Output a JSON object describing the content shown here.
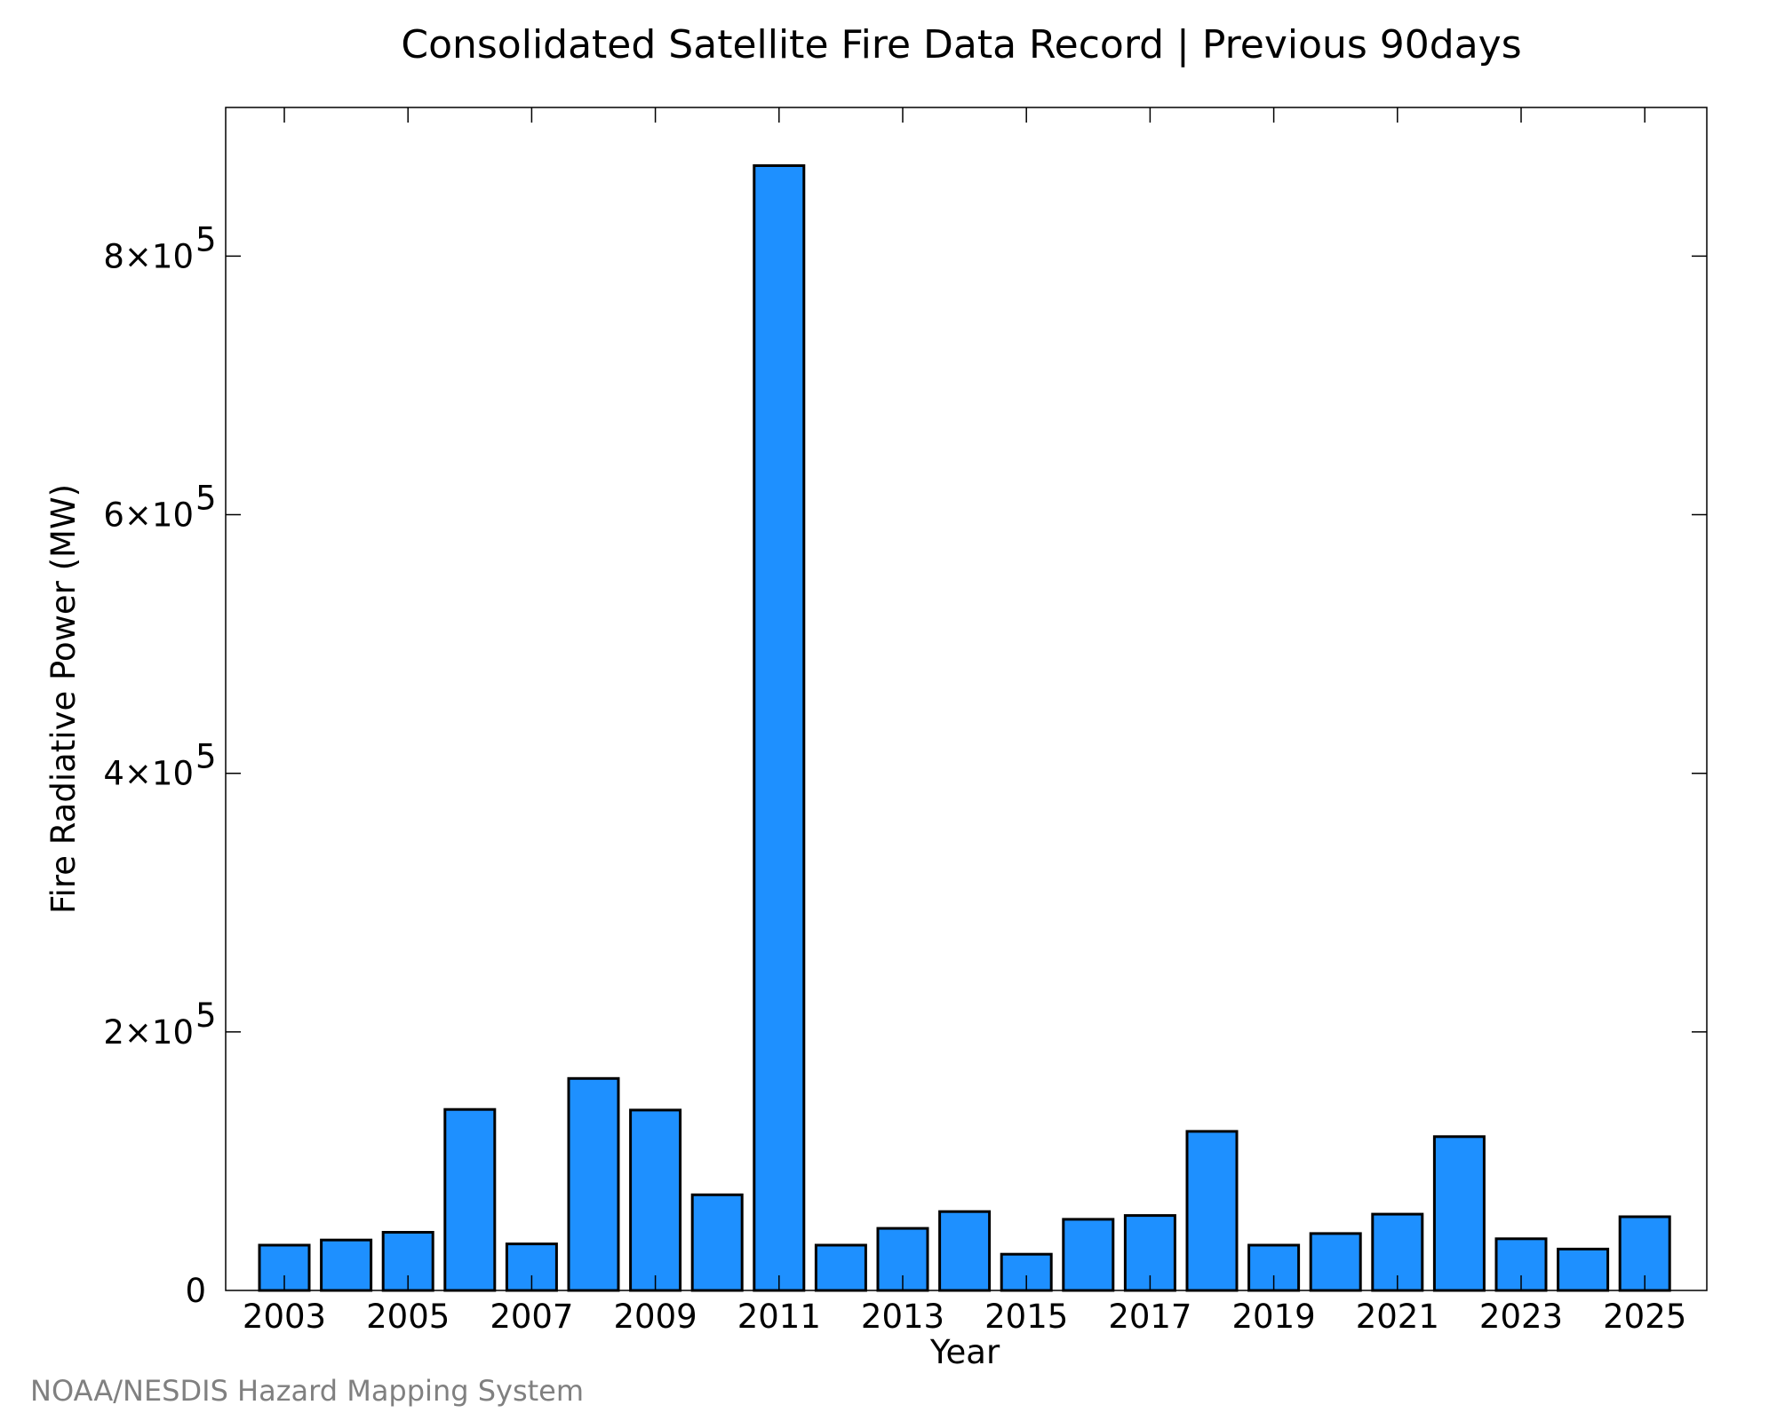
{
  "chart_data": {
    "type": "bar",
    "title": "Consolidated Satellite Fire Data Record | Previous 90days",
    "xlabel": "Year",
    "ylabel": "Fire Radiative Power (MW)",
    "ylim": [
      0,
      915000
    ],
    "grid": false,
    "bar_color": "#1E90FF",
    "categories": [
      "2003",
      "2004",
      "2005",
      "2006",
      "2007",
      "2008",
      "2009",
      "2010",
      "2011",
      "2012",
      "2013",
      "2014",
      "2015",
      "2016",
      "2017",
      "2018",
      "2019",
      "2020",
      "2021",
      "2022",
      "2023",
      "2024",
      "2025"
    ],
    "values": [
      35000,
      39000,
      45000,
      140000,
      36000,
      164000,
      139500,
      74000,
      870000,
      35000,
      48000,
      61000,
      28000,
      55000,
      58000,
      123000,
      35000,
      44000,
      59000,
      119000,
      40000,
      32000,
      57000
    ],
    "x_tick_labels": [
      "2003",
      "2005",
      "2007",
      "2009",
      "2011",
      "2013",
      "2015",
      "2017",
      "2019",
      "2021",
      "2023",
      "2025"
    ],
    "y_ticks": [
      {
        "value": 0,
        "mantissa": "0",
        "exponent": ""
      },
      {
        "value": 200000,
        "mantissa": "2×10",
        "exponent": "5"
      },
      {
        "value": 400000,
        "mantissa": "4×10",
        "exponent": "5"
      },
      {
        "value": 600000,
        "mantissa": "6×10",
        "exponent": "5"
      },
      {
        "value": 800000,
        "mantissa": "8×10",
        "exponent": "5"
      }
    ]
  },
  "credit": "NOAA/NESDIS Hazard Mapping System"
}
